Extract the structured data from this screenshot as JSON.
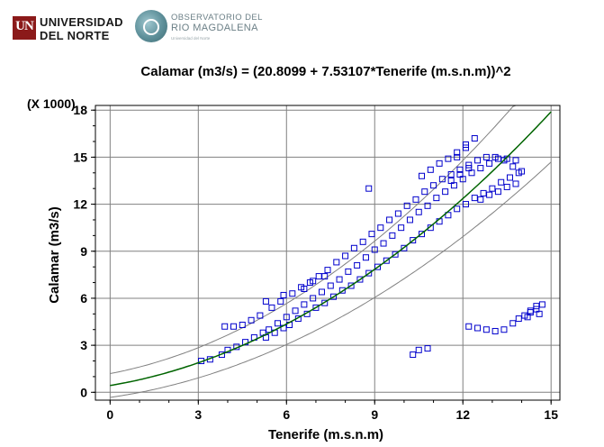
{
  "header": {
    "university_logo": {
      "mark": "UN",
      "line1": "UNIVERSIDAD",
      "line2": "DEL NORTE",
      "color": "#8b1a1a"
    },
    "observatory_logo": {
      "line1": "OBSERVATORIO DEL",
      "line2": "RIO MAGDALENA",
      "line3": "Universidad del Norte",
      "color": "#5d8f99"
    }
  },
  "chart_data": {
    "type": "scatter",
    "title": "Calamar  (m3/s) = (20.8099 + 7.53107*Tenerife (m.s.n.m))^2",
    "xlabel": "Tenerife (m.s.n.m)",
    "ylabel": "Calamar  (m3/s)",
    "y_multiplier_label": "(X 1000)",
    "xlim": [
      -0.5,
      15.3
    ],
    "ylim": [
      -0.5,
      18.3
    ],
    "x_ticks": [
      0,
      3,
      6,
      9,
      12,
      15
    ],
    "y_ticks": [
      0,
      3,
      6,
      9,
      12,
      15,
      18
    ],
    "x_tick_labels": [
      "0",
      "3",
      "6",
      "9",
      "12",
      "15"
    ],
    "y_tick_labels": [
      "0",
      "3",
      "6",
      "9",
      "12",
      "15",
      "18"
    ],
    "grid": true,
    "legend": "none",
    "colors": {
      "points": "#0000cc",
      "fit": "#006400",
      "limits": "#808080",
      "grid": "#808080"
    },
    "model": {
      "a": 20.8099,
      "b": 7.53107,
      "form": "y = (a + b*x)^2 / 1000"
    },
    "series": [
      {
        "role": "observations",
        "x": [
          3.1,
          3.4,
          3.8,
          4.0,
          4.3,
          4.6,
          4.9,
          5.2,
          5.4,
          5.7,
          6.0,
          6.3,
          6.6,
          6.9,
          7.2,
          7.5,
          7.8,
          8.1,
          8.4,
          8.7,
          9.0,
          9.3,
          9.6,
          9.9,
          10.2,
          10.5,
          10.8,
          11.1,
          11.4,
          11.7,
          12.0,
          12.3,
          12.6,
          12.9,
          13.2,
          13.5,
          13.8,
          3.9,
          4.2,
          4.5,
          4.8,
          5.1,
          5.5,
          5.8,
          6.2,
          6.5,
          6.8,
          7.1,
          7.4,
          7.7,
          8.0,
          8.3,
          8.6,
          8.9,
          9.2,
          9.5,
          9.8,
          10.1,
          10.4,
          10.7,
          11.0,
          11.3,
          11.6,
          11.9,
          12.2,
          12.5,
          12.8,
          13.1,
          13.4,
          13.7,
          5.3,
          5.6,
          5.9,
          6.1,
          6.4,
          6.7,
          7.0,
          7.3,
          7.6,
          7.9,
          8.2,
          8.5,
          8.8,
          9.1,
          9.4,
          9.7,
          10.0,
          10.3,
          10.6,
          10.9,
          11.2,
          11.5,
          11.8,
          12.1,
          12.4,
          12.7,
          13.0,
          13.3,
          13.6,
          13.9,
          10.6,
          10.9,
          11.2,
          11.5,
          11.8,
          12.1,
          12.4,
          12.1,
          11.8,
          12.6,
          12.9,
          13.2,
          13.5,
          13.8,
          14.0,
          11.6,
          11.9,
          12.2,
          8.8,
          5.3,
          5.9,
          6.6,
          6.9,
          7.3,
          12.2,
          12.5,
          12.8,
          13.1,
          13.4,
          13.7,
          13.9,
          14.1,
          14.3,
          14.5,
          14.6,
          14.7,
          14.5,
          14.3,
          14.2,
          10.3,
          10.5,
          10.8
        ],
        "y": [
          2.0,
          2.1,
          2.4,
          2.7,
          2.9,
          3.2,
          3.5,
          3.8,
          4.0,
          4.4,
          4.8,
          5.2,
          5.6,
          6.0,
          6.4,
          6.8,
          7.2,
          7.7,
          8.1,
          8.6,
          9.1,
          9.5,
          10.0,
          10.5,
          11.0,
          11.5,
          11.9,
          12.4,
          12.8,
          13.2,
          13.6,
          14.0,
          14.3,
          14.6,
          14.9,
          14.9,
          14.8,
          4.2,
          4.2,
          4.3,
          4.6,
          4.9,
          5.4,
          5.8,
          6.3,
          6.7,
          7.0,
          7.4,
          7.8,
          8.3,
          8.7,
          9.2,
          9.6,
          10.1,
          10.5,
          11.0,
          11.4,
          11.9,
          12.3,
          12.8,
          13.2,
          13.6,
          13.9,
          14.2,
          14.5,
          14.8,
          15.0,
          15.0,
          14.8,
          14.4,
          3.5,
          3.8,
          4.1,
          4.3,
          4.7,
          5.0,
          5.4,
          5.7,
          6.1,
          6.5,
          6.8,
          7.2,
          7.6,
          8.0,
          8.4,
          8.8,
          9.2,
          9.7,
          10.1,
          10.5,
          10.9,
          11.3,
          11.7,
          12.0,
          12.4,
          12.7,
          13.0,
          13.4,
          13.7,
          14.0,
          13.8,
          14.2,
          14.6,
          14.9,
          15.3,
          15.8,
          16.2,
          15.6,
          15.0,
          12.3,
          12.6,
          12.8,
          13.1,
          13.3,
          14.1,
          13.5,
          13.9,
          14.3,
          13.0,
          5.8,
          6.2,
          6.6,
          7.1,
          7.4,
          4.2,
          4.1,
          4.0,
          3.9,
          4.0,
          4.4,
          4.7,
          4.9,
          5.2,
          5.3,
          5.0,
          5.6,
          5.5,
          5.1,
          4.8,
          2.4,
          2.7,
          2.8
        ]
      }
    ]
  }
}
